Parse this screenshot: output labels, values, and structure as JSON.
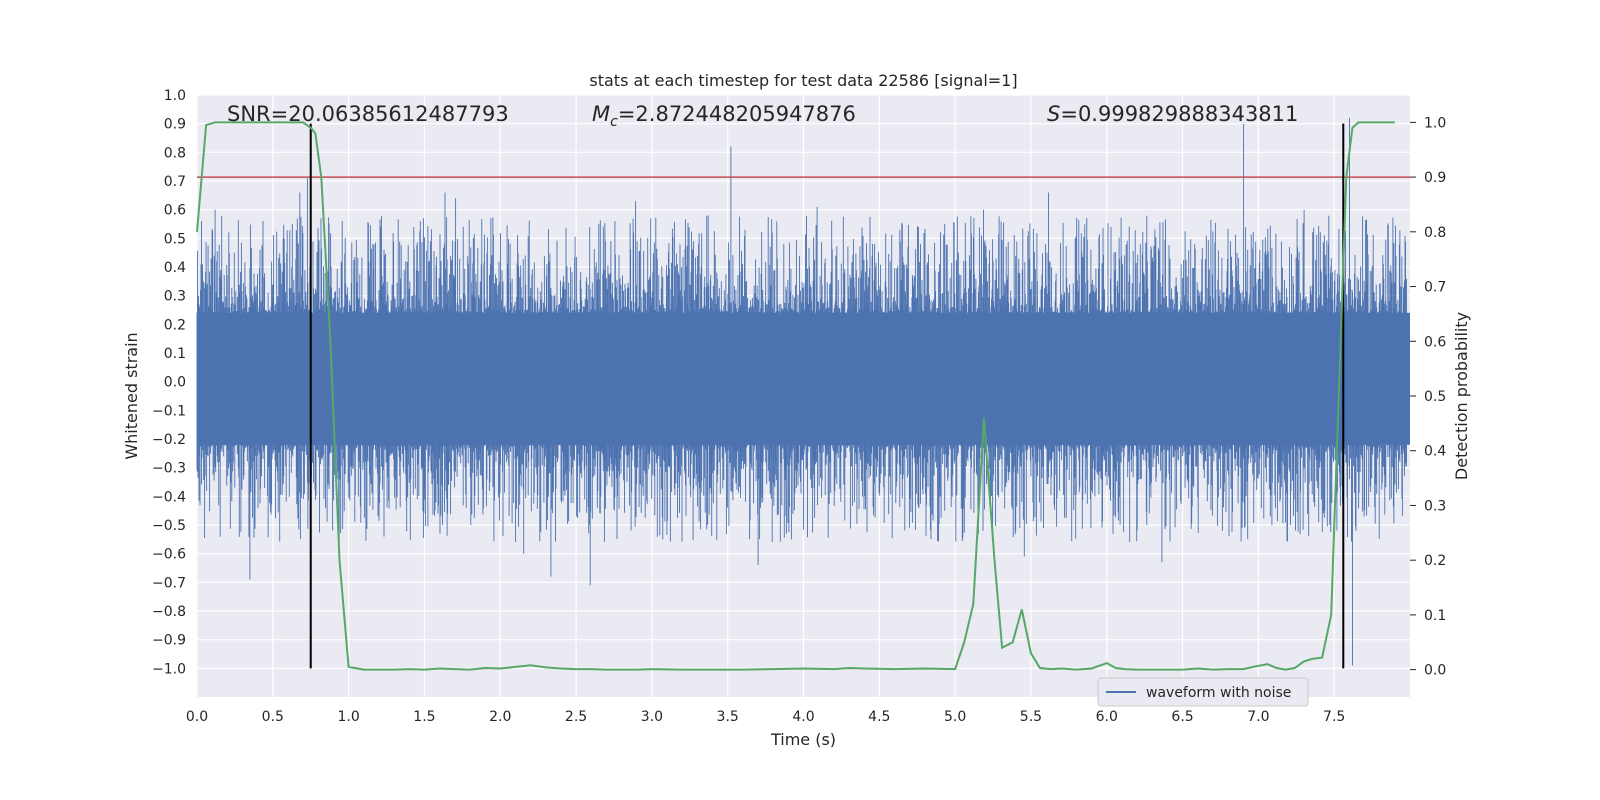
{
  "chart_data": {
    "type": "line",
    "title": "stats at each timestep for test data 22586 [signal=1]",
    "xlabel": "Time (s)",
    "ylabel": "Whitened strain",
    "y2label": "Detection probability",
    "xlim": [
      0.0,
      8.0
    ],
    "ylim": [
      -1.1,
      1.0
    ],
    "y2lim": [
      -0.05,
      1.05
    ],
    "xticks": [
      "0.0",
      "0.5",
      "1.0",
      "1.5",
      "2.0",
      "2.5",
      "3.0",
      "3.5",
      "4.0",
      "4.5",
      "5.0",
      "5.5",
      "6.0",
      "6.5",
      "7.0",
      "7.5"
    ],
    "yticks": [
      "1.0",
      "0.9",
      "0.8",
      "0.7",
      "0.6",
      "0.5",
      "0.4",
      "0.3",
      "0.2",
      "0.1",
      "0.0",
      "-0.1",
      "-0.2",
      "-0.3",
      "-0.4",
      "-0.5",
      "-0.6",
      "-0.7",
      "-0.8",
      "-0.9",
      "-1.0"
    ],
    "y2ticks": [
      "1.0",
      "0.9",
      "0.8",
      "0.7",
      "0.6",
      "0.5",
      "0.4",
      "0.3",
      "0.2",
      "0.1",
      "0.0"
    ],
    "grid": true,
    "legend_position": "lower-right",
    "annotations": {
      "snr": "SNR=20.06385612487793",
      "mc_symbol": "M",
      "mc_subscript": "c",
      "mc_value": "=2.872448205947876",
      "s_symbol": "S",
      "s_value": "=0.999829888343811"
    },
    "threshold": {
      "value": 0.9,
      "axis": "y2",
      "color": "#c44e52"
    },
    "vertical_markers": [
      {
        "x": 0.75,
        "y_range": [
          -1.0,
          0.9
        ],
        "color": "#000000"
      },
      {
        "x": 7.56,
        "y_range": [
          -1.0,
          0.9
        ],
        "color": "#000000"
      }
    ],
    "series": [
      {
        "name": "waveform with noise",
        "axis": "y",
        "color": "#4c72b0",
        "style": "dense noise, approx. symmetric",
        "band_core": [
          -0.22,
          0.24
        ],
        "typical_extent": [
          -0.45,
          0.45
        ],
        "peaks": [
          {
            "x": 0.03,
            "y": 0.56
          },
          {
            "x": 0.12,
            "y": 0.6
          },
          {
            "x": 0.35,
            "y": -0.69
          },
          {
            "x": 0.68,
            "y": 0.66
          },
          {
            "x": 0.73,
            "y": 0.71
          },
          {
            "x": 0.82,
            "y": 0.57
          },
          {
            "x": 1.64,
            "y": 0.66
          },
          {
            "x": 1.71,
            "y": 0.64
          },
          {
            "x": 2.16,
            "y": -0.6
          },
          {
            "x": 2.34,
            "y": -0.68
          },
          {
            "x": 2.6,
            "y": -0.71
          },
          {
            "x": 2.9,
            "y": 0.63
          },
          {
            "x": 3.53,
            "y": 0.82
          },
          {
            "x": 3.71,
            "y": -0.64
          },
          {
            "x": 4.1,
            "y": 0.61
          },
          {
            "x": 5.2,
            "y": 0.6
          },
          {
            "x": 5.47,
            "y": -0.61
          },
          {
            "x": 5.63,
            "y": 0.66
          },
          {
            "x": 6.38,
            "y": -0.63
          },
          {
            "x": 6.92,
            "y": 0.9
          },
          {
            "x": 7.32,
            "y": 0.6
          },
          {
            "x": 7.62,
            "y": 0.92
          },
          {
            "x": 7.64,
            "y": -0.99
          }
        ]
      },
      {
        "name": "",
        "axis": "y2",
        "color": "#55a868",
        "x": [
          0.0,
          0.06,
          0.12,
          0.2,
          0.3,
          0.4,
          0.5,
          0.6,
          0.7,
          0.75,
          0.78,
          0.82,
          0.88,
          0.94,
          1.0,
          1.1,
          1.2,
          1.3,
          1.4,
          1.5,
          1.6,
          1.7,
          1.8,
          1.9,
          2.0,
          2.1,
          2.2,
          2.3,
          2.4,
          2.5,
          2.6,
          2.7,
          2.8,
          2.9,
          3.0,
          3.2,
          3.4,
          3.6,
          3.8,
          4.0,
          4.2,
          4.3,
          4.4,
          4.6,
          4.8,
          5.0,
          5.06,
          5.12,
          5.19,
          5.26,
          5.31,
          5.38,
          5.44,
          5.5,
          5.56,
          5.63,
          5.7,
          5.8,
          5.9,
          6.0,
          6.06,
          6.12,
          6.2,
          6.3,
          6.4,
          6.5,
          6.6,
          6.7,
          6.8,
          6.9,
          7.0,
          7.06,
          7.12,
          7.18,
          7.24,
          7.3,
          7.36,
          7.42,
          7.48,
          7.53,
          7.58,
          7.62,
          7.66,
          7.72,
          7.8,
          7.9
        ],
        "values": [
          0.8,
          0.995,
          1.0,
          1.0,
          1.0,
          1.0,
          1.0,
          1.0,
          1.0,
          0.99,
          0.98,
          0.9,
          0.6,
          0.2,
          0.005,
          0.0,
          0.0,
          0.0,
          0.001,
          0.0,
          0.002,
          0.001,
          0.0,
          0.003,
          0.002,
          0.005,
          0.008,
          0.004,
          0.002,
          0.001,
          0.001,
          0.0,
          0.0,
          0.0,
          0.001,
          0.0,
          0.0,
          0.0,
          0.001,
          0.002,
          0.001,
          0.003,
          0.002,
          0.001,
          0.002,
          0.001,
          0.05,
          0.12,
          0.46,
          0.2,
          0.04,
          0.05,
          0.11,
          0.03,
          0.003,
          0.001,
          0.002,
          0.0,
          0.002,
          0.012,
          0.003,
          0.001,
          0.0,
          0.0,
          0.0,
          0.0,
          0.002,
          0.0,
          0.001,
          0.001,
          0.007,
          0.01,
          0.003,
          0.0,
          0.003,
          0.015,
          0.02,
          0.022,
          0.1,
          0.5,
          0.9,
          0.99,
          1.0,
          1.0,
          1.0,
          1.0
        ]
      }
    ]
  }
}
